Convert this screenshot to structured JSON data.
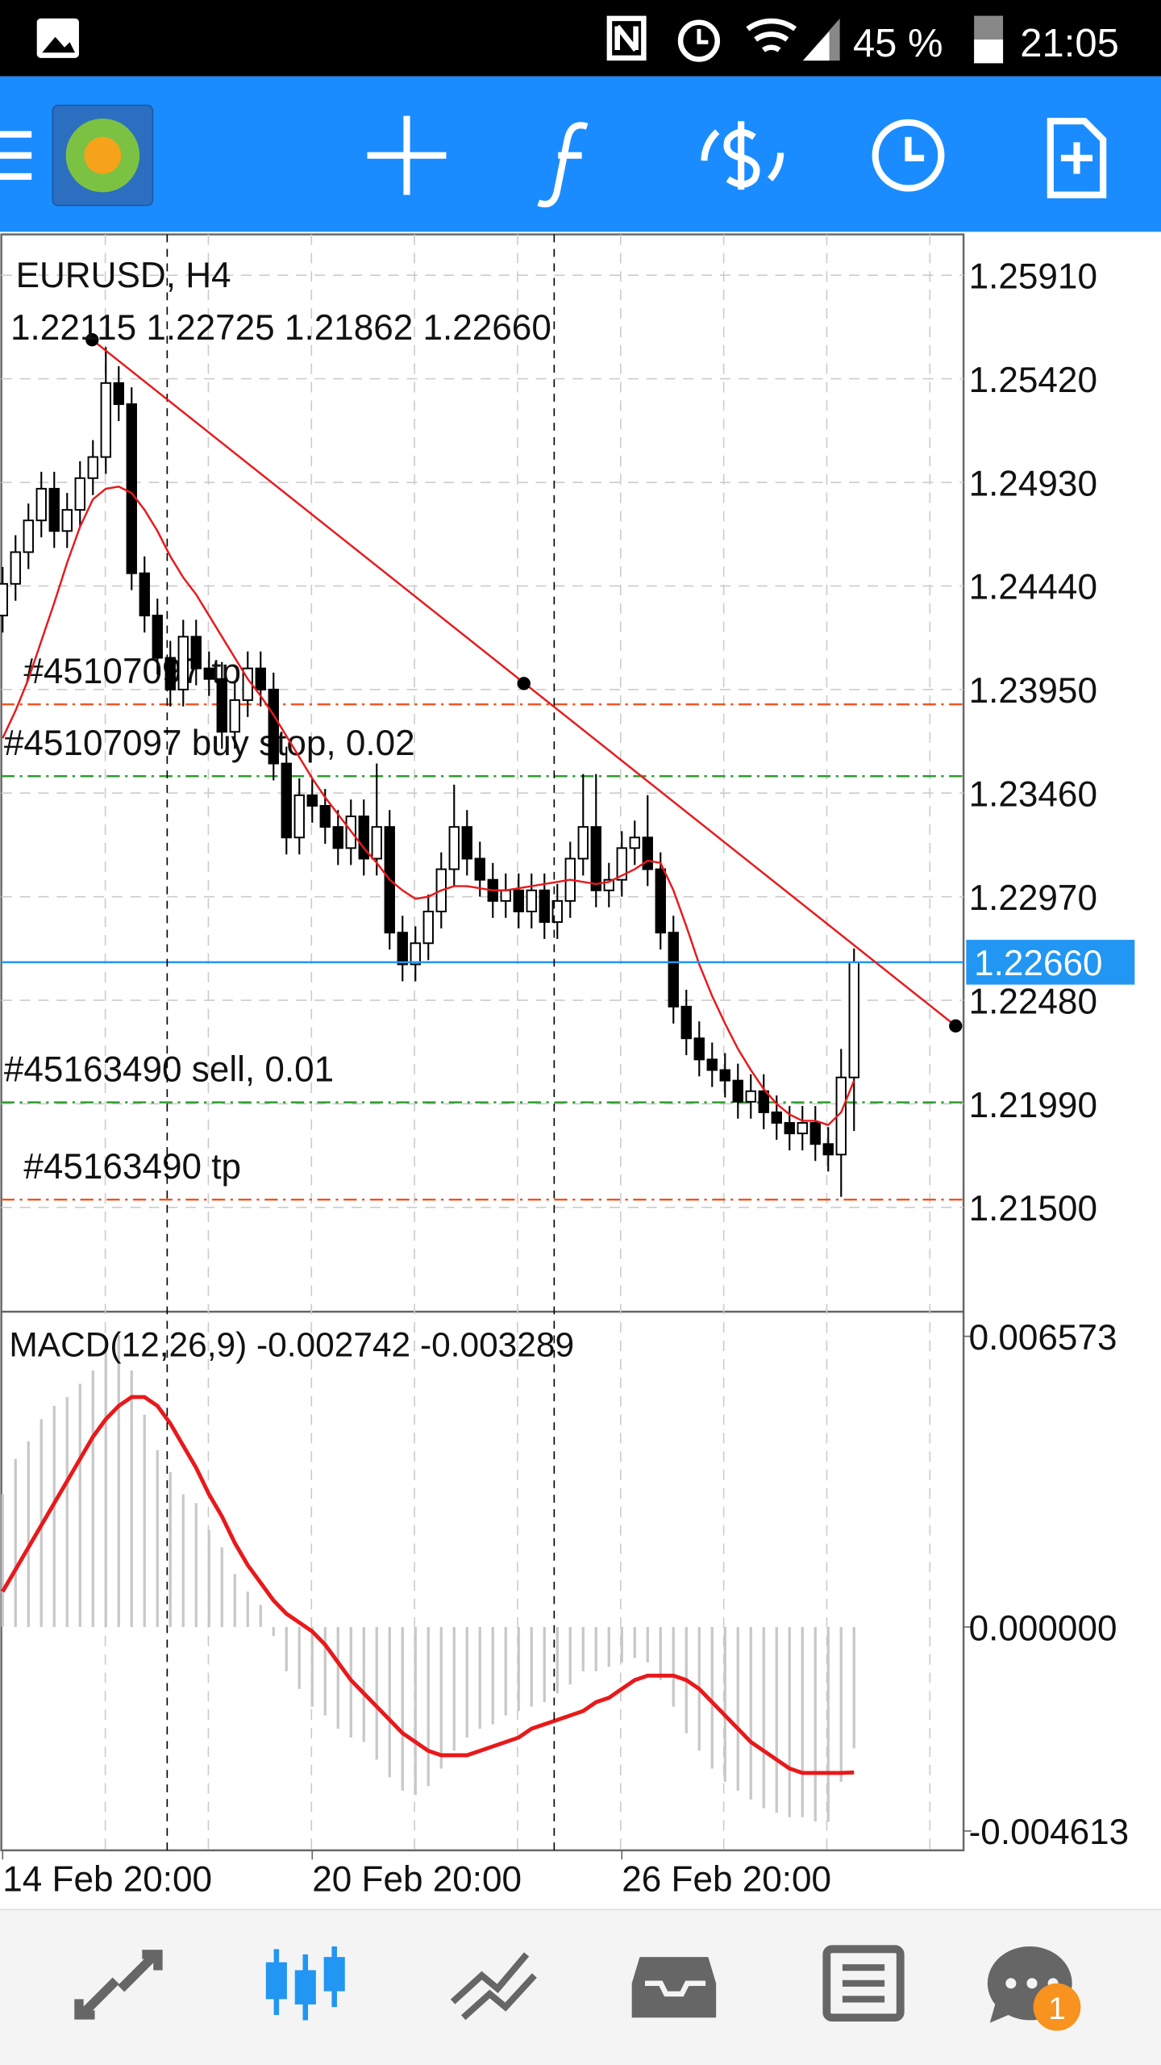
{
  "status_bar": {
    "battery": "45 %",
    "time": "21:05"
  },
  "chart_data": [
    {
      "type": "candlestick",
      "title": "EURUSD, H4",
      "subtitle": "1.22115 1.22725 1.21862 1.22660",
      "categories": [
        "14 Feb 20:00",
        null,
        null,
        null,
        null,
        null,
        null,
        null,
        null,
        null,
        null,
        null,
        null,
        null,
        null,
        null,
        null,
        null,
        null,
        null,
        null,
        null,
        null,
        null,
        "20 Feb 20:00",
        null,
        null,
        null,
        null,
        null,
        null,
        null,
        null,
        null,
        null,
        null,
        null,
        null,
        null,
        null,
        null,
        null,
        null,
        null,
        null,
        null,
        null,
        null,
        "26 Feb 20:00",
        null,
        null,
        null,
        null,
        null,
        null,
        null,
        null,
        null,
        null,
        null,
        null,
        null,
        null,
        null,
        null,
        null,
        null
      ],
      "open": [
        1.243,
        1.2445,
        1.246,
        1.2475,
        1.249,
        1.247,
        1.248,
        1.2495,
        1.2505,
        1.254,
        1.253,
        1.245,
        1.243,
        1.241,
        1.2395,
        1.242,
        1.2405,
        1.24,
        1.2375,
        1.239,
        1.2405,
        1.2395,
        1.236,
        1.2325,
        1.2345,
        1.234,
        1.233,
        1.232,
        1.2335,
        1.2315,
        1.233,
        1.228,
        1.2265,
        1.2275,
        1.229,
        1.231,
        1.233,
        1.2315,
        1.2305,
        1.2295,
        1.23,
        1.229,
        1.23,
        1.2285,
        1.2295,
        1.2315,
        1.233,
        1.23,
        1.2305,
        1.232,
        1.2325,
        1.231,
        1.228,
        1.2245,
        1.223,
        1.222,
        1.2215,
        1.221,
        1.22,
        1.2205,
        1.2195,
        1.219,
        1.2185,
        1.219,
        1.218,
        1.2175,
        1.22115
      ],
      "high": [
        1.2453,
        1.2468,
        1.2483,
        1.2498,
        1.2498,
        1.2488,
        1.2503,
        1.2513,
        1.2557,
        1.2548,
        1.2538,
        1.2458,
        1.2438,
        1.2418,
        1.2428,
        1.2428,
        1.2413,
        1.2408,
        1.2398,
        1.2413,
        1.2413,
        1.2403,
        1.2368,
        1.2353,
        1.2353,
        1.2348,
        1.2338,
        1.2343,
        1.2343,
        1.236,
        1.2338,
        1.2288,
        1.2283,
        1.2298,
        1.2318,
        1.235,
        1.2338,
        1.2323,
        1.2313,
        1.2308,
        1.2308,
        1.2308,
        1.2308,
        1.2303,
        1.2323,
        1.2355,
        1.2355,
        1.2313,
        1.2328,
        1.2333,
        1.2345,
        1.2318,
        1.2288,
        1.2253,
        1.2238,
        1.2228,
        1.2223,
        1.2218,
        1.2213,
        1.2213,
        1.2203,
        1.2198,
        1.2198,
        1.2198,
        1.2188,
        1.2225,
        1.22725
      ],
      "low": [
        1.2422,
        1.2437,
        1.2452,
        1.2467,
        1.2462,
        1.2462,
        1.2472,
        1.2487,
        1.2497,
        1.2522,
        1.2442,
        1.2422,
        1.2402,
        1.2387,
        1.2387,
        1.2397,
        1.2392,
        1.2367,
        1.2367,
        1.2382,
        1.2387,
        1.2352,
        1.2317,
        1.2317,
        1.2332,
        1.2322,
        1.2312,
        1.2312,
        1.2307,
        1.2307,
        1.2272,
        1.2257,
        1.2257,
        1.2267,
        1.2282,
        1.2302,
        1.2307,
        1.2297,
        1.2287,
        1.2287,
        1.2282,
        1.2282,
        1.2277,
        1.2277,
        1.2287,
        1.2307,
        1.2292,
        1.2292,
        1.2297,
        1.2312,
        1.2302,
        1.2272,
        1.2237,
        1.2222,
        1.2212,
        1.2207,
        1.2202,
        1.2192,
        1.2192,
        1.2187,
        1.2182,
        1.2177,
        1.2177,
        1.2172,
        1.2167,
        1.2155,
        1.21862
      ],
      "close": [
        1.2445,
        1.246,
        1.2475,
        1.249,
        1.247,
        1.248,
        1.2495,
        1.2505,
        1.254,
        1.253,
        1.245,
        1.243,
        1.241,
        1.2395,
        1.242,
        1.2405,
        1.24,
        1.2375,
        1.239,
        1.2405,
        1.2395,
        1.236,
        1.2325,
        1.2345,
        1.234,
        1.233,
        1.232,
        1.2335,
        1.2315,
        1.233,
        1.228,
        1.2265,
        1.2275,
        1.229,
        1.231,
        1.233,
        1.2315,
        1.2305,
        1.2295,
        1.23,
        1.229,
        1.23,
        1.2285,
        1.2295,
        1.2315,
        1.233,
        1.23,
        1.2305,
        1.232,
        1.2325,
        1.231,
        1.228,
        1.2245,
        1.223,
        1.222,
        1.2215,
        1.221,
        1.22,
        1.2205,
        1.2195,
        1.219,
        1.2185,
        1.219,
        1.218,
        1.2175,
        1.22115,
        1.2266
      ],
      "overlay_line": {
        "color": "#e8191b",
        "values": [
          1.2372,
          1.2385,
          1.24,
          1.2418,
          1.2436,
          1.2455,
          1.2472,
          1.2485,
          1.249,
          1.2491,
          1.2488,
          1.248,
          1.247,
          1.2458,
          1.2448,
          1.244,
          1.243,
          1.242,
          1.241,
          1.24,
          1.2392,
          1.2383,
          1.2373,
          1.2363,
          1.2353,
          1.2344,
          1.2336,
          1.2328,
          1.232,
          1.2313,
          1.2305,
          1.23,
          1.2296,
          1.2297,
          1.23,
          1.2302,
          1.2302,
          1.2301,
          1.23,
          1.23,
          1.2301,
          1.2302,
          1.2303,
          1.2304,
          1.2305,
          1.2304,
          1.2303,
          1.2304,
          1.2307,
          1.231,
          1.2314,
          1.2313,
          1.23,
          1.2283,
          1.2265,
          1.225,
          1.2237,
          1.2225,
          1.2215,
          1.2206,
          1.2199,
          1.2194,
          1.2191,
          1.2191,
          1.2189,
          1.2195,
          1.221
        ]
      },
      "levels": [
        {
          "label": "#45107097 tp",
          "value": 1.2388,
          "color": "#f4511e"
        },
        {
          "label": "#45107097 buy stop, 0.02",
          "value": 1.2354,
          "color": "#2e9d2e"
        },
        {
          "label": "#45163490 sell, 0.01",
          "value": 1.21997,
          "color": "#2e9d2e"
        },
        {
          "label": "#45163490 tp",
          "value": 1.21537,
          "color": "#f4511e"
        }
      ],
      "last_price": {
        "value": 1.2266,
        "label": "1.22660",
        "color": "#2196f3"
      },
      "ylim": [
        1.21013,
        1.26103
      ],
      "yticks": [
        {
          "value": 1.2591,
          "label": "1.25910"
        },
        {
          "value": 1.2542,
          "label": "1.25420"
        },
        {
          "value": 1.2493,
          "label": "1.24930"
        },
        {
          "value": 1.2444,
          "label": "1.24440"
        },
        {
          "value": 1.2395,
          "label": "1.23950"
        },
        {
          "value": 1.2346,
          "label": "1.23460"
        },
        {
          "value": 1.2297,
          "label": "1.22970"
        },
        {
          "value": 1.2248,
          "label": "1.22480"
        },
        {
          "value": 1.2199,
          "label": "1.21990"
        },
        {
          "value": 1.215,
          "label": "1.21500"
        }
      ],
      "grid": true
    },
    {
      "type": "macd",
      "title": "MACD(12,26,9) -0.002742 -0.003289",
      "histogram": {
        "color": "#c8c8c8",
        "values": [
          0.003,
          0.0038,
          0.0042,
          0.0047,
          0.005,
          0.0052,
          0.0055,
          0.0058,
          0.0065,
          0.0066,
          0.0058,
          0.0048,
          0.004,
          0.0035,
          0.003,
          0.0028,
          0.0022,
          0.0018,
          0.0012,
          0.0008,
          0.0005,
          -0.0002,
          -0.001,
          -0.0014,
          -0.0018,
          -0.002,
          -0.0023,
          -0.0025,
          -0.0026,
          -0.003,
          -0.0034,
          -0.0037,
          -0.0038,
          -0.0036,
          -0.0032,
          -0.0028,
          -0.0025,
          -0.0023,
          -0.0022,
          -0.002,
          -0.0019,
          -0.0018,
          -0.0017,
          -0.0015,
          -0.0013,
          -0.001,
          -0.001,
          -0.0009,
          -0.0008,
          -0.0007,
          -0.0008,
          -0.0012,
          -0.0018,
          -0.0024,
          -0.0028,
          -0.0032,
          -0.0035,
          -0.0037,
          -0.0039,
          -0.0041,
          -0.0042,
          -0.0043,
          -0.0043,
          -0.0044,
          -0.0044,
          -0.0035,
          -0.002742
        ]
      },
      "signal": {
        "color": "#e8191b",
        "values": [
          0.0008,
          0.0013,
          0.0018,
          0.0023,
          0.0028,
          0.0033,
          0.0038,
          0.0043,
          0.0047,
          0.005,
          0.0052,
          0.0052,
          0.005,
          0.0046,
          0.0041,
          0.0036,
          0.003,
          0.0025,
          0.0019,
          0.0014,
          0.001,
          0.0006,
          0.0003,
          0.0001,
          -0.0001,
          -0.0004,
          -0.0008,
          -0.0012,
          -0.0015,
          -0.0018,
          -0.0021,
          -0.0024,
          -0.0026,
          -0.0028,
          -0.0029,
          -0.0029,
          -0.0029,
          -0.0028,
          -0.0027,
          -0.0026,
          -0.0025,
          -0.0023,
          -0.0022,
          -0.0021,
          -0.002,
          -0.0019,
          -0.0017,
          -0.0016,
          -0.0014,
          -0.0012,
          -0.0011,
          -0.0011,
          -0.0011,
          -0.0012,
          -0.0014,
          -0.0017,
          -0.002,
          -0.0023,
          -0.0026,
          -0.0028,
          -0.003,
          -0.0032,
          -0.0033,
          -0.0033,
          -0.0033,
          -0.0033,
          -0.003289
        ]
      },
      "ylim": [
        -0.00505,
        0.0071
      ],
      "yticks": [
        {
          "value": 0.006573,
          "label": "0.006573"
        },
        {
          "value": 0,
          "label": "0.000000"
        },
        {
          "value": -0.004613,
          "label": "-0.004613"
        }
      ]
    }
  ],
  "nav": {
    "badge": "1"
  }
}
